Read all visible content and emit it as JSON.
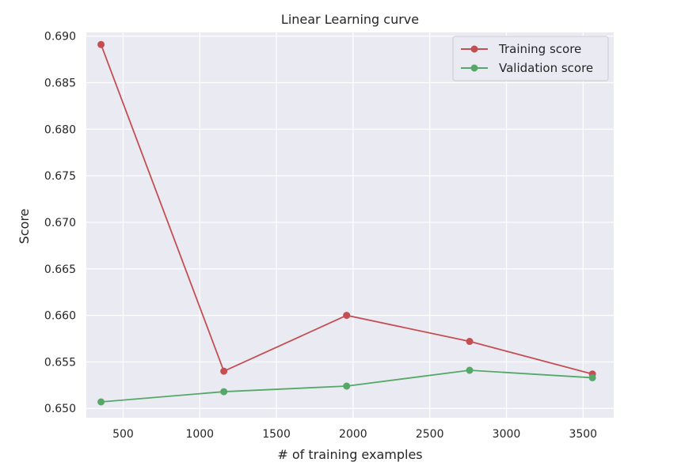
{
  "chart_data": {
    "type": "line",
    "title": "Linear Learning curve",
    "xlabel": "# of training examples",
    "ylabel": "Score",
    "xlim": [
      260,
      3700
    ],
    "ylim": [
      0.649,
      0.6904
    ],
    "xticks": [
      500,
      1000,
      1500,
      2000,
      2500,
      3000,
      3500
    ],
    "xtick_labels": [
      "500",
      "1000",
      "1500",
      "2000",
      "2500",
      "3000",
      "3500"
    ],
    "yticks": [
      0.65,
      0.655,
      0.66,
      0.665,
      0.67,
      0.675,
      0.68,
      0.685,
      0.69
    ],
    "ytick_labels": [
      "0.650",
      "0.655",
      "0.660",
      "0.665",
      "0.670",
      "0.675",
      "0.680",
      "0.685",
      "0.690"
    ],
    "grid": true,
    "legend_position": "top-right",
    "x": [
      356,
      1157,
      1958,
      2760,
      3561
    ],
    "series": [
      {
        "name": "Training score",
        "color": "#c44e52",
        "values": [
          0.6891,
          0.654,
          0.66,
          0.6572,
          0.6537
        ]
      },
      {
        "name": "Validation score",
        "color": "#55a868",
        "values": [
          0.6507,
          0.6518,
          0.6524,
          0.6541,
          0.6533
        ]
      }
    ]
  },
  "colors": {
    "plot_background": "#eaeaf2",
    "grid": "#ffffff",
    "text": "#262626"
  }
}
